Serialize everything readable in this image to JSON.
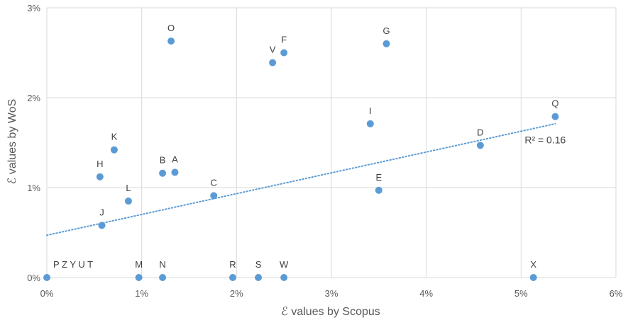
{
  "chart_data": {
    "type": "scatter",
    "xlabel": "ℰ values by Scopus",
    "ylabel": "ℰ values by WoS",
    "xlim": [
      0,
      6
    ],
    "ylim": [
      0,
      3
    ],
    "x_ticks": [
      0,
      1,
      2,
      3,
      4,
      5,
      6
    ],
    "y_ticks": [
      0,
      1,
      2,
      3
    ],
    "x_tick_labels": [
      "0%",
      "1%",
      "2%",
      "3%",
      "4%",
      "5%",
      "6%"
    ],
    "y_tick_labels": [
      "0%",
      "1%",
      "2%",
      "3%"
    ],
    "grid": true,
    "point_color": "#5b9bd5",
    "points": [
      {
        "label": "O",
        "x": 1.31,
        "y": 2.63
      },
      {
        "label": "V",
        "x": 2.38,
        "y": 2.39
      },
      {
        "label": "F",
        "x": 2.5,
        "y": 2.5
      },
      {
        "label": "G",
        "x": 3.58,
        "y": 2.6
      },
      {
        "label": "Q",
        "x": 5.36,
        "y": 1.79
      },
      {
        "label": "I",
        "x": 3.41,
        "y": 1.71
      },
      {
        "label": "D",
        "x": 4.57,
        "y": 1.47
      },
      {
        "label": "K",
        "x": 0.71,
        "y": 1.42
      },
      {
        "label": "H",
        "x": 0.56,
        "y": 1.12
      },
      {
        "label": "B",
        "x": 1.22,
        "y": 1.16
      },
      {
        "label": "A",
        "x": 1.35,
        "y": 1.17
      },
      {
        "label": "C",
        "x": 1.76,
        "y": 0.91
      },
      {
        "label": "E",
        "x": 3.5,
        "y": 0.97
      },
      {
        "label": "L",
        "x": 0.86,
        "y": 0.85
      },
      {
        "label": "J",
        "x": 0.58,
        "y": 0.58
      },
      {
        "label": "M",
        "x": 0.97,
        "y": 0.0
      },
      {
        "label": "N",
        "x": 1.22,
        "y": 0.0
      },
      {
        "label": "R",
        "x": 1.96,
        "y": 0.0
      },
      {
        "label": "S",
        "x": 2.23,
        "y": 0.0
      },
      {
        "label": "W",
        "x": 2.5,
        "y": 0.0
      },
      {
        "label": "X",
        "x": 5.13,
        "y": 0.0
      },
      {
        "label": "P  Z  Y  U  T",
        "x": 0.0,
        "y": 0.0
      }
    ],
    "trendline": {
      "type": "linear",
      "color": "#5b9bd5",
      "style": "dotted",
      "x_start": 0,
      "y_start": 0.47,
      "x_end": 5.36,
      "y_end": 1.71,
      "r2_label": "R² = 0.16",
      "r2_anchor_x": 5.0,
      "r2_anchor_y": 1.53
    }
  }
}
